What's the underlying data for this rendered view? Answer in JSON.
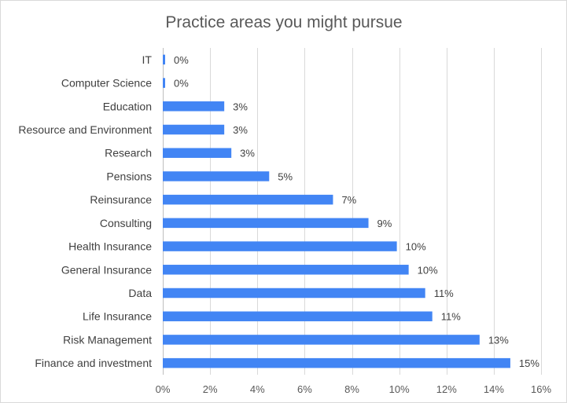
{
  "chart_data": {
    "type": "bar",
    "orientation": "horizontal",
    "title": "Practice areas you might pursue",
    "xlabel": "",
    "ylabel": "",
    "categories": [
      "IT",
      "Computer Science",
      "Education",
      "Resource and Environment",
      "Research",
      "Pensions",
      "Reinsurance",
      "Consulting",
      "Health Insurance",
      "General Insurance",
      "Data",
      "Life Insurance",
      "Risk Management",
      "Finance and investment"
    ],
    "values": [
      0.1,
      0.1,
      2.6,
      2.6,
      2.9,
      4.5,
      7.2,
      8.7,
      9.9,
      10.4,
      11.1,
      11.4,
      13.4,
      14.7
    ],
    "data_labels": [
      "0%",
      "0%",
      "3%",
      "3%",
      "3%",
      "5%",
      "7%",
      "9%",
      "10%",
      "10%",
      "11%",
      "11%",
      "13%",
      "15%"
    ],
    "xlim": [
      0,
      16
    ],
    "xticks": [
      0,
      2,
      4,
      6,
      8,
      10,
      12,
      14,
      16
    ],
    "xtick_labels": [
      "0%",
      "2%",
      "4%",
      "6%",
      "8%",
      "10%",
      "12%",
      "14%",
      "16%"
    ],
    "grid": "vertical",
    "legend": "none",
    "bar_color": "#4285f4"
  }
}
